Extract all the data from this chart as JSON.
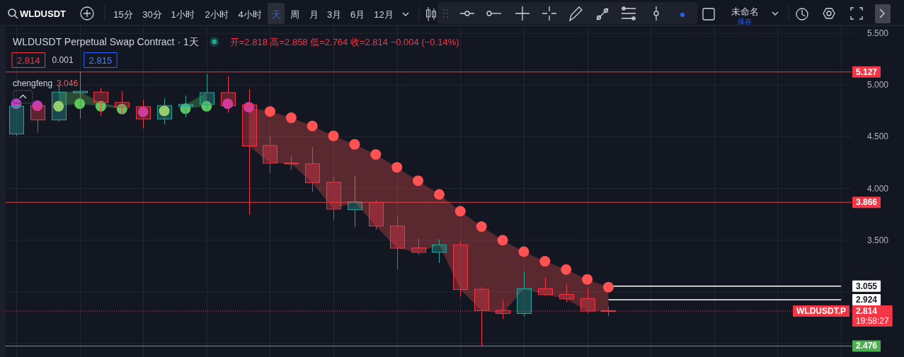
{
  "chart_data": {
    "type": "candlestick",
    "title": "WLDUSDT Perpetual Swap Contract · 1天",
    "subtitle": "开=2.818 高=2.858 低=2.764 收=2.814 −0.004 (−0.14%)",
    "categories": [
      null,
      null,
      null,
      null,
      null,
      null,
      null,
      null,
      null,
      null,
      null,
      null,
      null,
      null,
      null,
      null,
      null,
      null,
      null,
      null,
      null,
      null,
      null,
      null,
      null,
      null,
      null,
      null,
      null,
      null,
      null,
      null,
      null,
      null,
      null,
      null,
      null,
      null,
      null,
      null
    ],
    "ohlc": [
      [
        4.527,
        4.81,
        4.506,
        4.795
      ],
      [
        4.802,
        4.81,
        4.541,
        4.663
      ],
      [
        4.663,
        5.0,
        4.648,
        4.932
      ],
      [
        4.925,
        5.127,
        4.677,
        4.94
      ],
      [
        4.932,
        4.973,
        4.704,
        4.83
      ],
      [
        4.832,
        4.943,
        4.72,
        4.786
      ],
      [
        4.791,
        4.859,
        4.581,
        4.673
      ],
      [
        4.673,
        4.875,
        4.62,
        4.802
      ],
      [
        4.795,
        4.9,
        4.688,
        4.813
      ],
      [
        4.813,
        5.11,
        4.768,
        4.927
      ],
      [
        4.927,
        5.084,
        4.734,
        4.8
      ],
      [
        4.809,
        4.961,
        3.746,
        4.411
      ],
      [
        4.416,
        4.506,
        4.15,
        4.245
      ],
      [
        4.245,
        4.318,
        4.182,
        4.24
      ],
      [
        4.239,
        4.4,
        3.968,
        4.057
      ],
      [
        4.059,
        4.114,
        3.7,
        3.8
      ],
      [
        3.795,
        4.121,
        3.625,
        3.87
      ],
      [
        3.864,
        3.893,
        3.603,
        3.637
      ],
      [
        3.637,
        3.727,
        3.218,
        3.423
      ],
      [
        3.425,
        3.514,
        3.359,
        3.382
      ],
      [
        3.382,
        3.507,
        3.28,
        3.455
      ],
      [
        3.455,
        3.491,
        2.955,
        3.023
      ],
      [
        3.025,
        3.046,
        2.476,
        2.819
      ],
      [
        2.821,
        2.921,
        2.739,
        2.791
      ],
      [
        2.791,
        3.196,
        2.764,
        3.03
      ],
      [
        3.03,
        3.139,
        2.957,
        2.973
      ],
      [
        2.975,
        3.075,
        2.9,
        2.932
      ],
      [
        2.935,
        3.03,
        2.796,
        2.814
      ],
      [
        2.818,
        2.858,
        2.764,
        2.814
      ],
      null,
      null,
      null,
      null,
      null,
      null,
      null,
      null,
      null,
      null,
      null
    ],
    "colors": [
      "#26a69a",
      "#f23645",
      "#26a69a",
      "#26a69a",
      "#f23645",
      "#f23645",
      "#f23645",
      "#26a69a",
      "#26a69a",
      "#26a69a",
      "#f23645",
      "#f23645",
      "#f23645",
      "#f23645",
      "#f23645",
      "#f23645",
      "#26a69a",
      "#f23645",
      "#f23645",
      "#f23645",
      "#26a69a",
      "#f23645",
      "#f23645",
      "#f23645",
      "#26a69a",
      "#f23645",
      "#f23645",
      "#f23645",
      "#f23645",
      null,
      null,
      null,
      null,
      null,
      null,
      null,
      null,
      null,
      null,
      null
    ],
    "series": [
      {
        "type": "line",
        "color": "#ffffff",
        "values": [
          null,
          null,
          null,
          null,
          null,
          null,
          null,
          null,
          null,
          null,
          null,
          null,
          null,
          null,
          null,
          null,
          null,
          null,
          null,
          null,
          null,
          null,
          null,
          null,
          null,
          null,
          null,
          null,
          3.055,
          3.055,
          3.055,
          3.055,
          3.055,
          3.055,
          3.055,
          3.055,
          3.055,
          3.055,
          3.055,
          3.055
        ],
        "value_labels": [
          null,
          null,
          null,
          null,
          null,
          null,
          null,
          null,
          null,
          null,
          null,
          null,
          null,
          null,
          null,
          null,
          null,
          null,
          null,
          null,
          null,
          null,
          null,
          null,
          null,
          null,
          null,
          null,
          null,
          null,
          null,
          null,
          null,
          null,
          null,
          null,
          null,
          null,
          null,
          "3.055"
        ]
      },
      {
        "type": "line",
        "color": "#ffffff",
        "values": [
          null,
          null,
          null,
          null,
          null,
          null,
          null,
          null,
          null,
          null,
          null,
          null,
          null,
          null,
          null,
          null,
          null,
          null,
          null,
          null,
          null,
          null,
          null,
          null,
          null,
          null,
          null,
          null,
          2.924,
          2.924,
          2.924,
          2.924,
          2.924,
          2.924,
          2.924,
          2.924,
          2.924,
          2.924,
          2.924,
          2.924
        ],
        "value_labels": [
          null,
          null,
          null,
          null,
          null,
          null,
          null,
          null,
          null,
          null,
          null,
          null,
          null,
          null,
          null,
          null,
          null,
          null,
          null,
          null,
          null,
          null,
          null,
          null,
          null,
          null,
          null,
          null,
          null,
          null,
          null,
          null,
          null,
          null,
          null,
          null,
          null,
          null,
          null,
          "2.924"
        ]
      },
      {
        "name": "chengfeng",
        "type": "scatter",
        "values": [
          4.82,
          4.8,
          null,
          null,
          null,
          null,
          4.741,
          4.75,
          null,
          null,
          4.82,
          4.786,
          4.745,
          4.684,
          4.605,
          4.509,
          4.427,
          4.329,
          4.205,
          4.075,
          3.943,
          3.78,
          3.632,
          3.5,
          3.389,
          3.296,
          3.216,
          3.121,
          3.046,
          null,
          null,
          null,
          null,
          null,
          null,
          null,
          null,
          null,
          null,
          null
        ],
        "colors": [
          "#bf3fbf",
          "#bf3fbf",
          null,
          null,
          null,
          null,
          "#bf3fbf",
          "#d4e157",
          null,
          null,
          "#bf3fbf",
          "#bf3fbf",
          "#ff5252",
          "#ff5252",
          "#ff5252",
          "#ff5252",
          "#ff5252",
          "#ff5252",
          "#ff5252",
          "#ff5252",
          "#ff5252",
          "#ff5252",
          "#ff5252",
          "#ff5252",
          "#ff5252",
          "#ff5252",
          "#ff5252",
          "#ff5252",
          "#ff5252",
          null,
          null,
          null,
          null,
          null,
          null,
          null,
          null,
          null,
          null,
          null
        ],
        "upper": [
          null,
          null,
          null,
          null,
          null,
          null,
          null,
          null,
          null,
          null,
          null,
          4.786,
          4.745,
          4.684,
          4.605,
          4.509,
          4.427,
          4.329,
          4.205,
          4.075,
          3.943,
          3.78,
          3.632,
          3.5,
          3.389,
          3.296,
          3.216,
          3.121,
          3.046,
          null,
          null,
          null,
          null,
          null,
          null,
          null,
          null,
          null,
          null,
          null
        ],
        "lower": [
          null,
          null,
          null,
          null,
          null,
          null,
          null,
          null,
          null,
          null,
          null,
          4.411,
          4.245,
          4.24,
          4.057,
          3.8,
          3.87,
          3.637,
          3.423,
          3.382,
          3.455,
          3.023,
          2.819,
          2.791,
          3.03,
          2.973,
          2.932,
          2.814,
          2.814,
          null,
          null,
          null,
          null,
          null,
          null,
          null,
          null,
          null,
          null,
          null
        ]
      },
      {
        "type": "scatter",
        "values": [
          null,
          null,
          4.795,
          4.82,
          4.795,
          4.768,
          null,
          null,
          4.772,
          4.795,
          null,
          null,
          null,
          null,
          null,
          null,
          null,
          null,
          null,
          null,
          null,
          null,
          null,
          null,
          null,
          null,
          null,
          null,
          null,
          null,
          null,
          null,
          null,
          null,
          null,
          null,
          null,
          null,
          null,
          null
        ],
        "colors": [
          null,
          null,
          "#d4e157",
          "#5ec45c",
          "#5ec45c",
          "#5ec45c",
          null,
          null,
          "#5ec45c",
          "#5ec45c",
          null,
          null,
          null,
          null,
          null,
          null,
          null,
          null,
          null,
          null,
          null,
          null,
          null,
          null,
          null,
          null,
          null,
          null,
          null,
          null,
          null,
          null,
          null,
          null,
          null,
          null,
          null,
          null,
          null,
          null
        ],
        "upper": [
          null,
          null,
          4.932,
          4.94,
          4.83,
          4.786,
          null,
          null,
          4.813,
          4.927,
          null,
          null,
          null,
          null,
          null,
          null,
          null,
          null,
          null,
          null,
          null,
          null,
          null,
          null,
          null,
          null,
          null,
          null,
          null,
          null,
          null,
          null,
          null,
          null,
          null,
          null,
          null,
          null,
          null,
          null
        ],
        "lower": [
          null,
          null,
          4.795,
          4.82,
          4.795,
          4.768,
          null,
          null,
          4.772,
          4.795,
          null,
          null,
          null,
          null,
          null,
          null,
          null,
          null,
          null,
          null,
          null,
          null,
          null,
          null,
          null,
          null,
          null,
          null,
          null,
          null,
          null,
          null,
          null,
          null,
          null,
          null,
          null,
          null,
          null,
          null
        ]
      }
    ],
    "ylim": [
      2.37,
      5.57
    ],
    "yticks": [
      {
        "value": 2.5,
        "label": null
      },
      {
        "value": 3.0,
        "label": null
      },
      {
        "value": 3.5,
        "label": "3.500"
      },
      {
        "value": 4.0,
        "label": "4.000"
      },
      {
        "value": 4.5,
        "label": "4.500"
      },
      {
        "value": 5.0,
        "label": "5.000"
      },
      {
        "value": 5.5,
        "label": "5.500"
      }
    ],
    "tick_labels": "y",
    "grid": true,
    "ref_lines": [
      {
        "axis": "y",
        "value": 5.127,
        "label": "5.127",
        "color": "#f23645"
      },
      {
        "axis": "y",
        "value": 3.866,
        "label": "3.866",
        "color": "#f23645"
      },
      {
        "axis": "y",
        "value": 2.814,
        "label": "2.814\n19:58:27",
        "color": "#f23645",
        "line_style": "dotted"
      },
      {
        "axis": "y",
        "value": 2.476,
        "label": "2.476",
        "color": "#4caf50"
      }
    ],
    "annotations": [
      "WLDUSDT",
      "15分",
      "30分",
      "1小时",
      "2小时",
      "4小时",
      "天",
      "周",
      "月",
      "3月",
      "6月",
      "12月",
      "未命名",
      "保存",
      "2.814",
      "0.001",
      "2.815",
      "3.046",
      {
        "text": "WLDUSDT.P",
        "y": 2.814
      }
    ]
  }
}
